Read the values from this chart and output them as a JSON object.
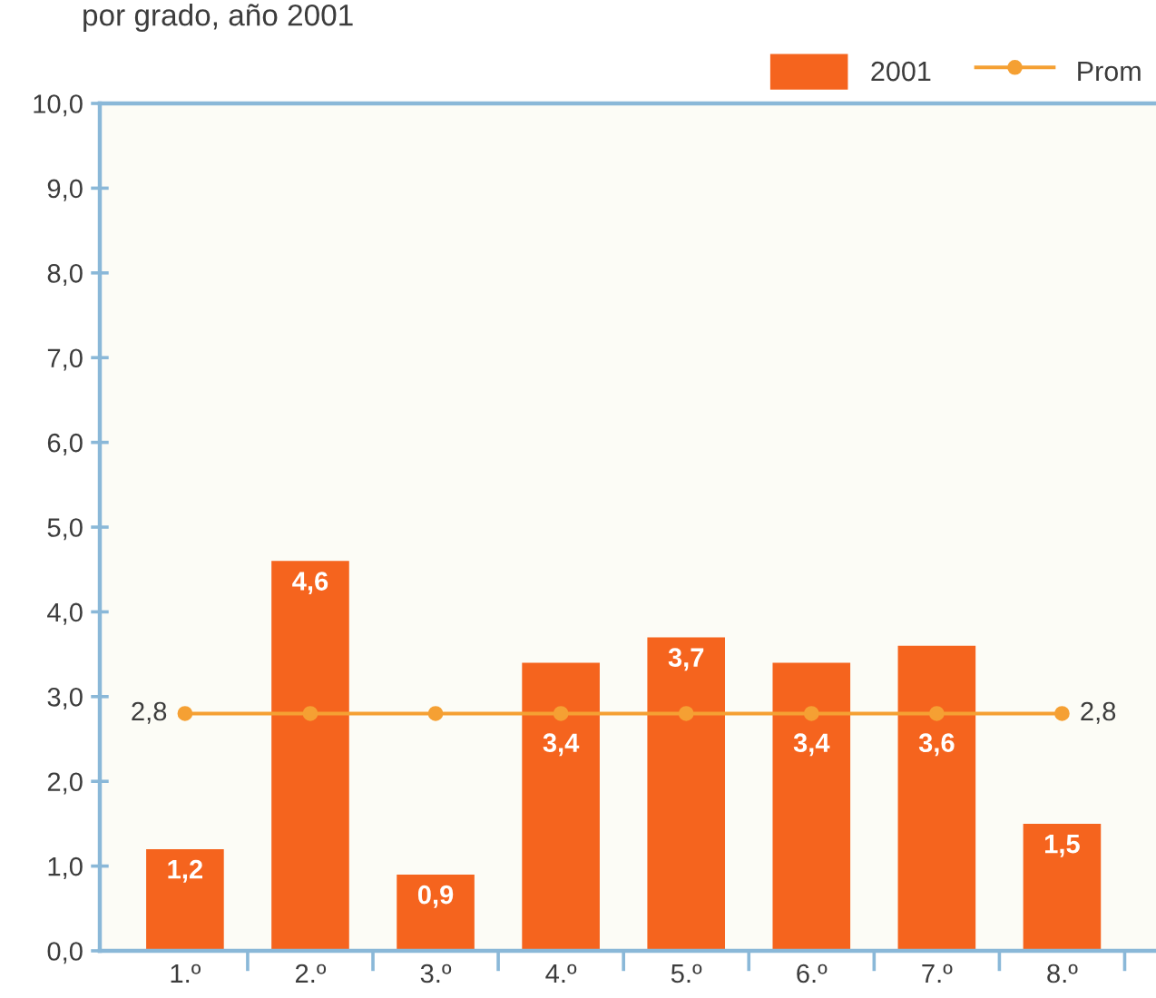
{
  "chart_data": {
    "type": "bar",
    "title": "por grado, año 2001",
    "categories": [
      "1.º",
      "2.º",
      "3.º",
      "4.º",
      "5.º",
      "6.º",
      "7.º",
      "8.º"
    ],
    "series": [
      {
        "name": "2001",
        "color": "#f5641e",
        "values": [
          1.2,
          4.6,
          0.9,
          3.4,
          3.7,
          3.4,
          3.6,
          1.5
        ],
        "value_labels": [
          "1,2",
          "4,6",
          "0,9",
          "3,4",
          "3,7",
          "3,4",
          "3,6",
          "1,5"
        ]
      },
      {
        "name": "Prom",
        "type": "line",
        "color": "#f5a033",
        "values": [
          2.8,
          2.8,
          2.8,
          2.8,
          2.8,
          2.8,
          2.8,
          2.8
        ],
        "value_labels": [
          "2,8",
          null,
          null,
          null,
          null,
          null,
          null,
          "2,8"
        ]
      }
    ],
    "ylim": [
      0,
      10
    ],
    "yticks": [
      {
        "value": 0,
        "label": "0,0"
      },
      {
        "value": 1,
        "label": "1,0"
      },
      {
        "value": 2,
        "label": "2,0"
      },
      {
        "value": 3,
        "label": "3,0"
      },
      {
        "value": 4,
        "label": "4,0"
      },
      {
        "value": 5,
        "label": "5,0"
      },
      {
        "value": 6,
        "label": "6,0"
      },
      {
        "value": 7,
        "label": "7,0"
      },
      {
        "value": 8,
        "label": "8,0"
      },
      {
        "value": 9,
        "label": "9,0"
      },
      {
        "value": 10,
        "label": "10,0"
      }
    ],
    "legend": "top right",
    "marker": "circle"
  }
}
